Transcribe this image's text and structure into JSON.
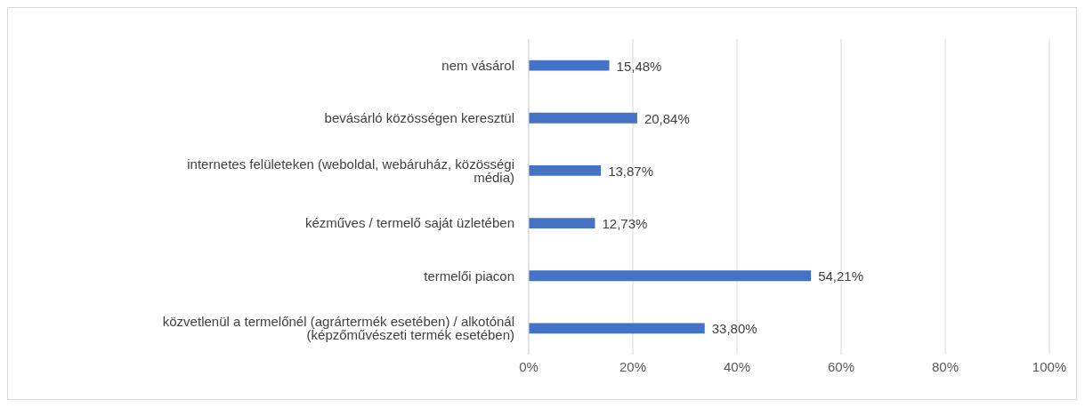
{
  "chart_data": {
    "type": "bar",
    "orientation": "horizontal",
    "categories": [
      "nem vásárol",
      "bevásárló közösségen keresztül",
      "internetes felületeken (weboldal, webáruház, közösségi média)",
      "kézműves / termelő saját üzletében",
      "termelői piacon",
      "közvetlenül a termelőnél (agrártermék esetében) / alkotónál (képzőművészeti termék esetében)"
    ],
    "values": [
      15.48,
      20.84,
      13.87,
      12.73,
      54.21,
      33.8
    ],
    "value_labels": [
      "15,48%",
      "20,84%",
      "13,87%",
      "12,73%",
      "54,21%",
      "33,80%"
    ],
    "color": "#4472c4",
    "xlim": [
      0,
      100
    ],
    "xticks": [
      {
        "value": 0,
        "label": "0%"
      },
      {
        "value": 20,
        "label": "20%"
      },
      {
        "value": 40,
        "label": "40%"
      },
      {
        "value": 60,
        "label": "60%"
      },
      {
        "value": 80,
        "label": "80%"
      },
      {
        "value": 100,
        "label": "100%"
      }
    ],
    "grid": "x",
    "legend": false
  }
}
